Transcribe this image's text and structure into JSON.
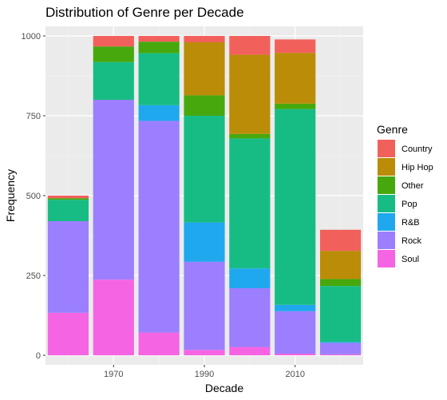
{
  "chart_data": {
    "type": "bar",
    "stacked": true,
    "title": "Distribution of Genre per Decade",
    "xlabel": "Decade",
    "ylabel": "Frequency",
    "x": [
      1960,
      1970,
      1980,
      1990,
      2000,
      2010,
      2020
    ],
    "x_ticks": [
      "1970",
      "1990",
      "2010"
    ],
    "y_ticks": [
      "0",
      "250",
      "500",
      "750",
      "1000"
    ],
    "ylim": [
      -30,
      1030
    ],
    "xlim": [
      1955,
      2025
    ],
    "grid": true,
    "legend_position": "right",
    "legend_title": "Genre",
    "series": [
      {
        "name": "Soul",
        "color": "#F564E3",
        "values": [
          133,
          237,
          71,
          17,
          26,
          5,
          3
        ]
      },
      {
        "name": "Rock",
        "color": "#9B7FFF",
        "values": [
          287,
          563,
          663,
          276,
          184,
          133,
          36
        ]
      },
      {
        "name": "R&B",
        "color": "#1FA8EE",
        "values": [
          0,
          0,
          49,
          123,
          62,
          20,
          3
        ]
      },
      {
        "name": "Pop",
        "color": "#17BC85",
        "values": [
          67,
          118,
          163,
          334,
          407,
          613,
          175
        ]
      },
      {
        "name": "Other",
        "color": "#47A80E",
        "values": [
          5,
          49,
          36,
          64,
          14,
          17,
          22
        ]
      },
      {
        "name": "Hip Hop",
        "color": "#BA8C07",
        "values": [
          0,
          0,
          0,
          166,
          248,
          159,
          88
        ]
      },
      {
        "name": "Country",
        "color": "#F2605B",
        "values": [
          8,
          33,
          18,
          20,
          59,
          42,
          66
        ]
      }
    ],
    "legend_order": [
      "Country",
      "Hip Hop",
      "Other",
      "Pop",
      "R&B",
      "Rock",
      "Soul"
    ]
  }
}
